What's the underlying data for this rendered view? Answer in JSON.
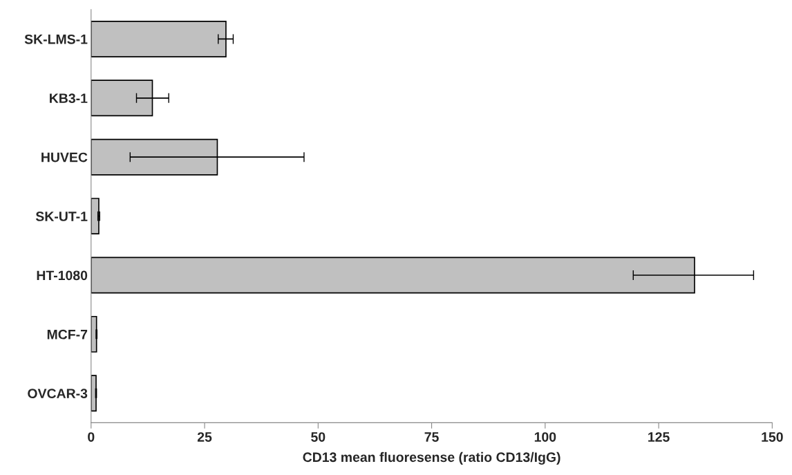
{
  "chart_data": {
    "type": "bar",
    "orientation": "horizontal",
    "xlabel": "CD13 mean fluoresense (ratio CD13/IgG)",
    "categories": [
      "SK-LMS-1",
      "KB3-1",
      "HUVEC",
      "SK-UT-1",
      "HT-1080",
      "MCF-7",
      "OVCAR-3"
    ],
    "values": [
      29.7,
      13.5,
      27.8,
      1.7,
      132.9,
      1.2,
      1.1
    ],
    "errors": [
      [
        28.0,
        31.3
      ],
      [
        10.0,
        17.1
      ],
      [
        8.6,
        46.9
      ],
      [
        1.5,
        1.9
      ],
      [
        119.4,
        145.9
      ],
      [
        1.1,
        1.3
      ],
      [
        1.0,
        1.2
      ]
    ],
    "color": "#c0c0c0",
    "xlim": [
      0,
      150
    ],
    "xticks": [
      0,
      25,
      50,
      75,
      100,
      125,
      150
    ],
    "grid": false,
    "legend": false
  }
}
